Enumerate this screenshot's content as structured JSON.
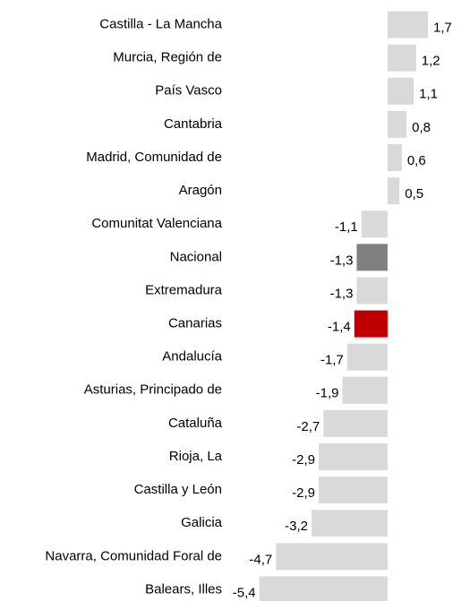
{
  "chart_data": {
    "type": "bar",
    "orientation": "horizontal",
    "categories": [
      "Castilla - La Mancha",
      "Murcia, Región de",
      "País Vasco",
      "Cantabria",
      "Madrid, Comunidad de",
      "Aragón",
      "Comunitat Valenciana",
      "Nacional",
      "Extremadura",
      "Canarias",
      "Andalucía",
      "Asturias, Principado de",
      "Cataluña",
      "Rioja, La",
      "Castilla y León",
      "Galicia",
      "Navarra, Comunidad Foral de",
      "Balears, Illes"
    ],
    "values": [
      1.7,
      1.2,
      1.1,
      0.8,
      0.6,
      0.5,
      -1.1,
      -1.3,
      -1.3,
      -1.4,
      -1.7,
      -1.9,
      -2.7,
      -2.9,
      -2.9,
      -3.2,
      -4.7,
      -5.4
    ],
    "value_labels": [
      "1,7",
      "1,2",
      "1,1",
      "0,8",
      "0,6",
      "0,5",
      "-1,1",
      "-1,3",
      "-1,3",
      "-1,4",
      "-1,7",
      "-1,9",
      "-2,7",
      "-2,9",
      "-2,9",
      "-3,2",
      "-4,7",
      "-5,4"
    ],
    "colors": [
      "#d9d9d9",
      "#d9d9d9",
      "#d9d9d9",
      "#d9d9d9",
      "#d9d9d9",
      "#d9d9d9",
      "#d9d9d9",
      "#808080",
      "#d9d9d9",
      "#c00000",
      "#d9d9d9",
      "#d9d9d9",
      "#d9d9d9",
      "#d9d9d9",
      "#d9d9d9",
      "#d9d9d9",
      "#d9d9d9",
      "#d9d9d9"
    ],
    "xlim": [
      -5.5,
      2
    ]
  }
}
